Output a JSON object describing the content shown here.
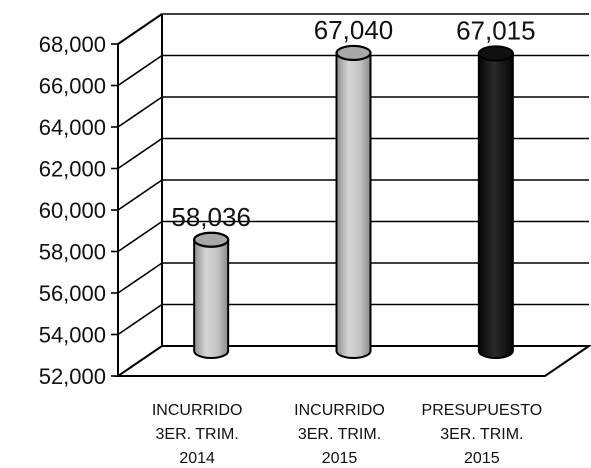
{
  "chart_data": {
    "type": "bar",
    "categories": [
      [
        "INCURRIDO",
        "3ER. TRIM.",
        "2014"
      ],
      [
        "INCURRIDO",
        "3ER. TRIM.",
        "2015"
      ],
      [
        "PRESUPUESTO",
        "3ER. TRIM.",
        "2015"
      ]
    ],
    "values": [
      58036,
      67040,
      67015
    ],
    "value_labels": [
      "58,036",
      "67,040",
      "67,015"
    ],
    "ylim": [
      52000,
      68000
    ],
    "yticks": [
      52000,
      54000,
      56000,
      58000,
      60000,
      62000,
      64000,
      66000,
      68000
    ],
    "ytick_labels": [
      "52,000",
      "54,000",
      "56,000",
      "58,000",
      "60,000",
      "62,000",
      "64,000",
      "66,000",
      "68,000"
    ],
    "grid": true,
    "bar_colors": [
      "#c4c4c4",
      "#c4c4c4",
      "#1a1a1a"
    ]
  }
}
